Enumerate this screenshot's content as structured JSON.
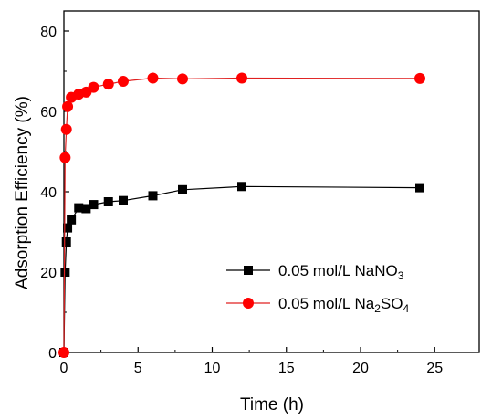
{
  "chart_data": {
    "type": "line",
    "xlabel": "Time (h)",
    "ylabel": "Adsorption Efficiency (%)",
    "xlim": [
      0,
      28
    ],
    "ylim": [
      0,
      85
    ],
    "xticks": [
      0,
      5,
      10,
      15,
      20,
      25
    ],
    "yticks": [
      0,
      20,
      40,
      60,
      80
    ],
    "grid": false,
    "legend_position": "lower-right",
    "series": [
      {
        "name": "0.05 mol/L NaNO",
        "name_sub": "3",
        "marker": "square",
        "color": "#000000",
        "line_color": "#000000",
        "x": [
          0,
          0.083,
          0.167,
          0.25,
          0.5,
          1,
          1.5,
          2,
          3,
          4,
          6,
          8,
          12,
          24
        ],
        "y": [
          0,
          20,
          27.5,
          31,
          33,
          36,
          35.8,
          36.8,
          37.5,
          37.8,
          39,
          40.5,
          41.3,
          41
        ]
      },
      {
        "name": "0.05 mol/L Na",
        "name_sub": "2",
        "name_tail": "SO",
        "name_sub2": "4",
        "marker": "circle",
        "color": "#ff0000",
        "line_color": "#e02020",
        "x": [
          0,
          0.083,
          0.167,
          0.25,
          0.5,
          1,
          1.5,
          2,
          3,
          4,
          6,
          8,
          12,
          24
        ],
        "y": [
          0,
          48.5,
          55.5,
          61.2,
          63.5,
          64.3,
          64.8,
          66,
          66.8,
          67.5,
          68.3,
          68.1,
          68.3,
          68.2
        ]
      }
    ]
  }
}
